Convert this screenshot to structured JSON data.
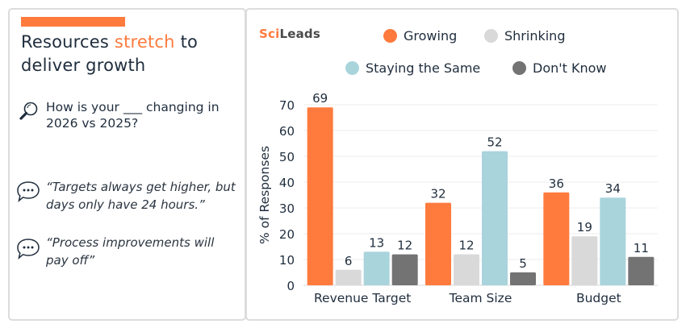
{
  "left_panel": {
    "title_part1": "Resources ",
    "title_highlight": "stretch",
    "title_part2": " to deliver growth",
    "question_icon": "magnifier-icon",
    "question": "How is your ___ changing in 2026 vs 2025?",
    "quotes": [
      {
        "icon": "speech-bubble-icon",
        "text": "“Targets always get higher, but days only have 24 hours.”"
      },
      {
        "icon": "speech-bubble-icon",
        "text": "“Process improvements will pay off”"
      }
    ]
  },
  "brand": {
    "logo_part1": "Sci",
    "logo_part2": "Leads"
  },
  "colors": {
    "accent": "#ff7a3d",
    "growing": "#ff7a3d",
    "shrinking": "#d9d9d9",
    "staying": "#a9d4dc",
    "dont_know": "#737373"
  },
  "chart_data": {
    "type": "bar",
    "title": "",
    "xlabel": "",
    "ylabel": "% of Responses",
    "ylim": [
      0,
      70
    ],
    "yticks": [
      0,
      10,
      20,
      30,
      40,
      50,
      60,
      70
    ],
    "grid": true,
    "legend_position": "top",
    "categories": [
      "Revenue Target",
      "Team Size",
      "Budget"
    ],
    "series": [
      {
        "name": "Growing",
        "color": "#ff7a3d",
        "values": [
          69,
          32,
          36
        ]
      },
      {
        "name": "Shrinking",
        "color": "#d9d9d9",
        "values": [
          6,
          12,
          19
        ]
      },
      {
        "name": "Staying the Same",
        "color": "#a9d4dc",
        "values": [
          13,
          52,
          34
        ]
      },
      {
        "name": "Don't Know",
        "color": "#737373",
        "values": [
          12,
          5,
          11
        ]
      }
    ]
  }
}
